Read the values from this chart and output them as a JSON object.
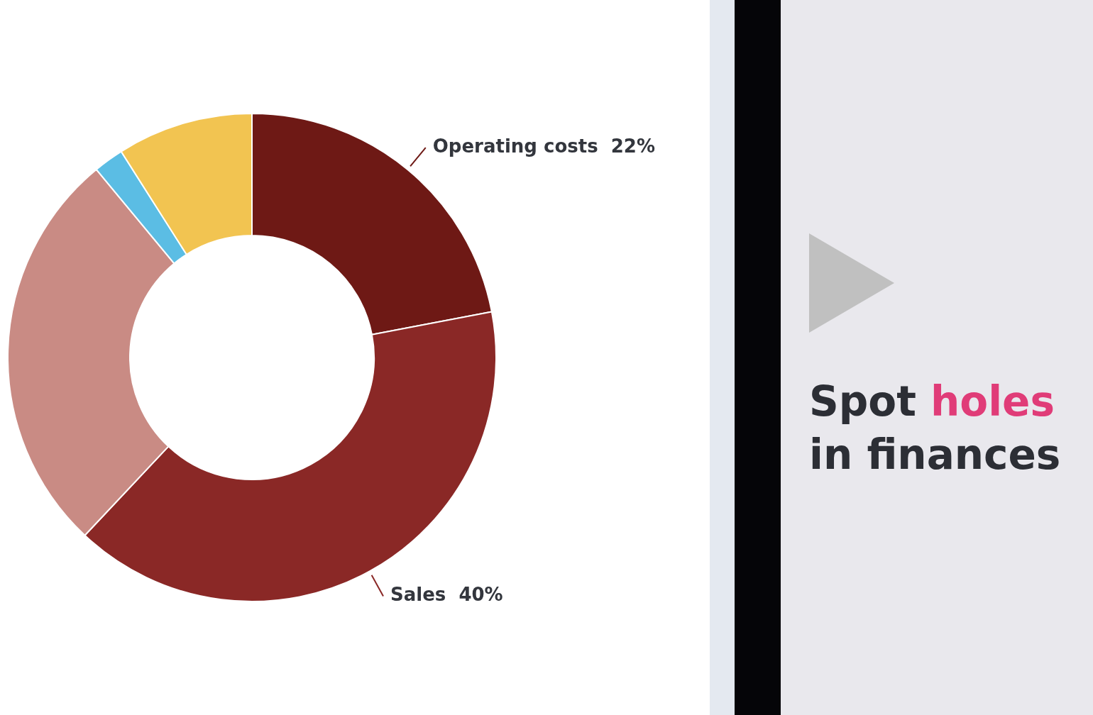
{
  "chart_data": {
    "type": "donut",
    "title": "Spot holes in finances",
    "categories": [
      "Operating costs",
      "Sales",
      null,
      null,
      null
    ],
    "values": [
      22,
      40,
      27,
      2,
      9
    ],
    "value_labels": [
      "22%",
      "40%",
      null,
      null,
      null
    ],
    "colors": [
      "#6e1915",
      "#8a2826",
      "#c98b84",
      "#5bbde4",
      "#f2c451"
    ],
    "legend": false
  }
}
